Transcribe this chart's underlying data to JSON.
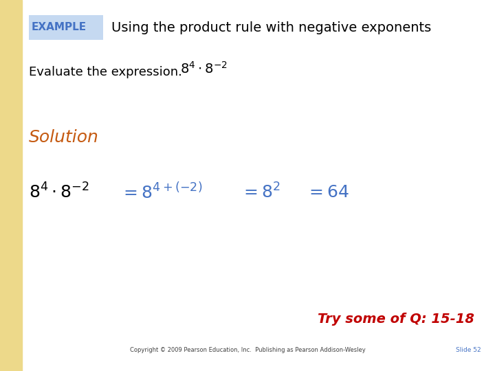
{
  "background_color": "#FFFFFF",
  "left_bar_color_top": "#F5E6B0",
  "left_bar_color_bot": "#E8C870",
  "example_box_color": "#C5D9F1",
  "example_text": "EXAMPLE",
  "example_text_color": "#4472C4",
  "title_text": "Using the product rule with negative exponents",
  "title_color": "#000000",
  "evaluate_text": "Evaluate the expression.",
  "evaluate_color": "#000000",
  "solution_text": "Solution",
  "solution_color": "#C55A11",
  "expr_color": "#000000",
  "step_color": "#4472C4",
  "try_some_text": "Try some of Q: 15-18",
  "try_some_color": "#C00000",
  "copyright_text": "Copyright © 2009 Pearson Education, Inc.  Publishing as Pearson Addison-Wesley",
  "copyright_color": "#404040",
  "slide_text": "Slide 52",
  "slide_color": "#4472C4",
  "fig_width": 7.2,
  "fig_height": 5.4,
  "dpi": 100
}
